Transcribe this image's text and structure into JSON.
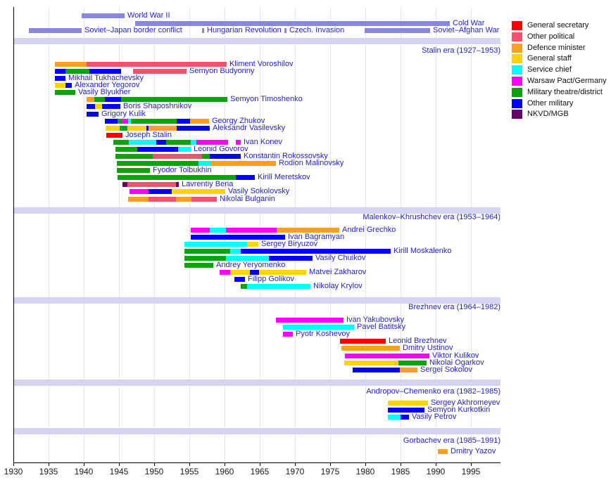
{
  "chart_data": {
    "type": "timeline",
    "axis": {
      "xlabel": "",
      "ticks": [
        1930,
        1935,
        1940,
        1945,
        1950,
        1955,
        1960,
        1965,
        1970,
        1975,
        1980,
        1985,
        1990,
        1995
      ],
      "xlim": [
        1930,
        1995
      ]
    },
    "palette": {
      "general_secretary": "#ff0000",
      "other_political": "#f6506e",
      "defence_minister": "#fb9e24",
      "general_staff": "#ffd400",
      "service_chief": "#00ffff",
      "warsaw_pact": "#ff00ff",
      "military_district": "#0aa30a",
      "other_military": "#0000ff",
      "nkvd": "#660066",
      "war_bar": "#8787dd",
      "era_band": "#d4d4f0",
      "grid_line": "#e4e4f0",
      "label_text": "#2323cc",
      "axis_text": "#1a1a1a"
    },
    "legend": [
      {
        "role": "general_secretary",
        "label": "General secretary"
      },
      {
        "role": "other_political",
        "label": "Other political"
      },
      {
        "role": "defence_minister",
        "label": "Defence minister"
      },
      {
        "role": "general_staff",
        "label": "General staff"
      },
      {
        "role": "service_chief",
        "label": "Service chief"
      },
      {
        "role": "warsaw_pact",
        "label": "Warsaw Pact/Germany"
      },
      {
        "role": "military_district",
        "label": "Military theatre/district"
      },
      {
        "role": "other_military",
        "label": "Other military"
      },
      {
        "role": "nkvd",
        "label": "NKVD/MGB"
      }
    ],
    "war_rows": [
      [
        {
          "name": "World War II",
          "start": 1939.7,
          "end": 1945.8
        }
      ],
      [
        {
          "name": "Cold War",
          "start": 1947.3,
          "end": 1992.0
        }
      ],
      [
        {
          "name": "Soviet–Japan border conflict",
          "start": 1932.2,
          "end": 1939.7
        },
        {
          "name": "Hungarian Revolution",
          "start": 1956.8,
          "end": 1957.1
        },
        {
          "name": "Czech. Invasion",
          "start": 1968.5,
          "end": 1968.8
        },
        {
          "name": "Soviet–Afghan War",
          "start": 1979.9,
          "end": 1989.2
        }
      ]
    ],
    "sections": [
      {
        "header": "Stalin era (1927–1953)",
        "rows": [
          {
            "name": "Kliment Voroshilov",
            "segments": [
              [
                "defence_minister",
                1935.9,
                1940.4
              ],
              [
                "other_political",
                1940.4,
                1960.3
              ]
            ]
          },
          {
            "name": "Semyon Budyonny",
            "segments": [
              [
                "other_military",
                1935.9,
                1937.4
              ],
              [
                "military_district",
                1937.4,
                1940.8
              ],
              [
                "other_military",
                1940.8,
                1945.3
              ],
              [
                "other_political",
                1947.0,
                1954.6
              ]
            ]
          },
          {
            "name": "Mikhail Tukhachevsky",
            "segments": [
              [
                "other_military",
                1935.9,
                1937.4
              ]
            ]
          },
          {
            "name": "Alexander Yegorov",
            "segments": [
              [
                "general_staff",
                1935.9,
                1937.4
              ],
              [
                "other_military",
                1937.4,
                1938.3
              ]
            ]
          },
          {
            "name": "Vasily Blyukher",
            "segments": [
              [
                "military_district",
                1935.9,
                1938.8
              ]
            ]
          },
          {
            "name": "Semyon Timoshenko",
            "segments": [
              [
                "defence_minister",
                1940.4,
                1941.5
              ],
              [
                "military_district",
                1941.5,
                1943.0
              ],
              [
                "other_military",
                1943.0,
                1945.3
              ],
              [
                "military_district",
                1945.3,
                1960.4
              ]
            ]
          },
          {
            "name": "Boris Shaposhnikov",
            "segments": [
              [
                "other_military",
                1940.4,
                1941.6
              ],
              [
                "general_staff",
                1941.6,
                1942.6
              ],
              [
                "other_military",
                1942.6,
                1945.2
              ]
            ]
          },
          {
            "name": "Grigory Kulik",
            "segments": [
              [
                "other_military",
                1940.4,
                1942.1
              ]
            ]
          },
          {
            "name": "Georgy Zhukov",
            "segments": [
              [
                "other_military",
                1943.0,
                1944.8
              ],
              [
                "military_district",
                1944.8,
                1945.5
              ],
              [
                "warsaw_pact",
                1945.5,
                1946.3
              ],
              [
                "service_chief",
                1946.3,
                1946.7
              ],
              [
                "military_district",
                1946.7,
                1953.2
              ],
              [
                "other_military",
                1953.2,
                1955.1
              ],
              [
                "defence_minister",
                1955.1,
                1957.8
              ]
            ]
          },
          {
            "name": "Aleksandr Vasilevsky",
            "segments": [
              [
                "general_staff",
                1943.1,
                1945.1
              ],
              [
                "military_district",
                1945.1,
                1946.2
              ],
              [
                "general_staff",
                1946.2,
                1948.9
              ],
              [
                "other_military",
                1948.9,
                1949.2
              ],
              [
                "defence_minister",
                1949.2,
                1953.2
              ],
              [
                "other_military",
                1953.2,
                1957.9
              ]
            ]
          },
          {
            "name": "Joseph Stalin",
            "segments": [
              [
                "general_secretary",
                1943.2,
                1945.5
              ]
            ]
          },
          {
            "name": "Ivan Konev",
            "segments": [
              [
                "military_district",
                1944.2,
                1946.4
              ],
              [
                "service_chief",
                1946.4,
                1950.3
              ],
              [
                "other_military",
                1950.3,
                1951.7
              ],
              [
                "military_district",
                1951.7,
                1955.2
              ],
              [
                "service_chief",
                1955.2,
                1956.0
              ],
              [
                "warsaw_pact",
                1956.0,
                1960.5
              ],
              [
                "warsaw_pact",
                1961.6,
                1962.3
              ]
            ]
          },
          {
            "name": "Leonid Govorov",
            "segments": [
              [
                "military_district",
                1944.5,
                1947.6
              ],
              [
                "other_military",
                1947.6,
                1953.4
              ],
              [
                "service_chief",
                1953.4,
                1955.2
              ]
            ]
          },
          {
            "name": "Konstantin Rokossovsky",
            "segments": [
              [
                "military_district",
                1944.5,
                1949.8
              ],
              [
                "other_political",
                1949.8,
                1956.8
              ],
              [
                "military_district",
                1956.8,
                1957.9
              ],
              [
                "other_military",
                1957.9,
                1962.3
              ]
            ]
          },
          {
            "name": "Rodion Malinovsky",
            "segments": [
              [
                "military_district",
                1944.7,
                1956.3
              ],
              [
                "service_chief",
                1956.3,
                1958.0
              ],
              [
                "defence_minister",
                1958.0,
                1967.3
              ]
            ]
          },
          {
            "name": "Fyodor Tolbukhin",
            "segments": [
              [
                "military_district",
                1944.7,
                1949.4
              ]
            ]
          },
          {
            "name": "Kirill Meretskov",
            "segments": [
              [
                "military_district",
                1944.8,
                1961.6
              ],
              [
                "other_military",
                1961.6,
                1964.3
              ]
            ]
          },
          {
            "name": "Lavrentiy Beria",
            "segments": [
              [
                "nkvd",
                1945.5,
                1946.2
              ],
              [
                "other_political",
                1946.2,
                1953.1
              ],
              [
                "nkvd",
                1953.1,
                1953.5
              ]
            ]
          },
          {
            "name": "Vasily Sokolovsky",
            "segments": [
              [
                "warsaw_pact",
                1946.5,
                1949.2
              ],
              [
                "other_military",
                1949.2,
                1952.5
              ],
              [
                "general_staff",
                1952.5,
                1960.1
              ]
            ]
          },
          {
            "name": "Nikolai Bulganin",
            "segments": [
              [
                "defence_minister",
                1946.3,
                1949.2
              ],
              [
                "other_political",
                1949.2,
                1953.1
              ],
              [
                "defence_minister",
                1953.1,
                1955.3
              ],
              [
                "other_political",
                1955.3,
                1958.9
              ]
            ]
          }
        ]
      },
      {
        "header": "Malenkov–Khrushchev era (1953–1964)",
        "rows": [
          {
            "name": "Andrei Grechko",
            "segments": [
              [
                "warsaw_pact",
                1955.2,
                1957.9
              ],
              [
                "service_chief",
                1957.9,
                1960.2
              ],
              [
                "warsaw_pact",
                1960.2,
                1967.4
              ],
              [
                "defence_minister",
                1967.4,
                1976.3
              ]
            ]
          },
          {
            "name": "Ivan Bagramyan",
            "segments": [
              [
                "other_military",
                1955.2,
                1968.6
              ]
            ]
          },
          {
            "name": "Sergey Biryuzov",
            "segments": [
              [
                "service_chief",
                1954.3,
                1963.2
              ],
              [
                "general_staff",
                1963.2,
                1964.8
              ]
            ]
          },
          {
            "name": "Kirill Moskalenko",
            "segments": [
              [
                "military_district",
                1954.3,
                1960.8
              ],
              [
                "service_chief",
                1960.8,
                1962.3
              ],
              [
                "other_military",
                1962.3,
                1983.6
              ]
            ]
          },
          {
            "name": "Vasily Chuikov",
            "segments": [
              [
                "military_district",
                1954.3,
                1960.2
              ],
              [
                "service_chief",
                1960.2,
                1966.3
              ],
              [
                "other_military",
                1966.3,
                1972.5
              ]
            ]
          },
          {
            "name": "Andrey Yeryomenko",
            "segments": [
              [
                "military_district",
                1954.3,
                1958.4
              ]
            ]
          },
          {
            "name": "Matvei Zakharov",
            "segments": [
              [
                "warsaw_pact",
                1959.3,
                1960.8
              ],
              [
                "general_staff",
                1960.8,
                1963.6
              ],
              [
                "other_military",
                1963.6,
                1964.9
              ],
              [
                "general_staff",
                1964.9,
                1971.6
              ]
            ]
          },
          {
            "name": "Filipp Golikov",
            "segments": [
              [
                "other_military",
                1961.4,
                1962.9
              ]
            ]
          },
          {
            "name": "Nikolay Krylov",
            "segments": [
              [
                "military_district",
                1962.3,
                1963.2
              ],
              [
                "service_chief",
                1963.2,
                1972.2
              ]
            ]
          }
        ]
      },
      {
        "header": "Brezhnev era (1964–1982)",
        "rows": [
          {
            "name": "Ivan Yakubovsky",
            "segments": [
              [
                "warsaw_pact",
                1967.3,
                1976.9
              ]
            ]
          },
          {
            "name": "Pavel Batitsky",
            "segments": [
              [
                "service_chief",
                1968.3,
                1978.4
              ]
            ]
          },
          {
            "name": "Pyotr Koshevoy",
            "segments": [
              [
                "warsaw_pact",
                1968.3,
                1969.7
              ]
            ]
          },
          {
            "name": "Leonid Brezhnev",
            "segments": [
              [
                "general_secretary",
                1976.4,
                1982.9
              ]
            ]
          },
          {
            "name": "Dmitry Ustinov",
            "segments": [
              [
                "defence_minister",
                1976.6,
                1984.9
              ]
            ]
          },
          {
            "name": "Viktor Kulikov",
            "segments": [
              [
                "warsaw_pact",
                1977.1,
                1989.1
              ]
            ]
          },
          {
            "name": "Nikolai Ogarkov",
            "segments": [
              [
                "general_staff",
                1977.0,
                1984.7
              ],
              [
                "military_district",
                1984.7,
                1988.7
              ]
            ]
          },
          {
            "name": "Sergei Sokolov",
            "segments": [
              [
                "other_military",
                1978.2,
                1984.9
              ],
              [
                "defence_minister",
                1984.9,
                1987.4
              ]
            ]
          }
        ]
      },
      {
        "header": "Andropov–Chemenko era (1982–1985)",
        "rows": [
          {
            "name": "Sergey Akhromeyev",
            "segments": [
              [
                "general_staff",
                1983.2,
                1988.9
              ]
            ]
          },
          {
            "name": "Semyon Kurkotkin",
            "segments": [
              [
                "other_military",
                1983.2,
                1988.4
              ]
            ]
          },
          {
            "name": "Vasily Petrov",
            "segments": [
              [
                "service_chief",
                1983.2,
                1985.0
              ],
              [
                "other_military",
                1985.0,
                1986.2
              ]
            ]
          }
        ]
      },
      {
        "header": "Gorbachev era (1985–1991)",
        "rows": [
          {
            "name": "Dmitry Yazov",
            "segments": [
              [
                "defence_minister",
                1990.3,
                1991.7
              ]
            ]
          }
        ]
      }
    ]
  }
}
